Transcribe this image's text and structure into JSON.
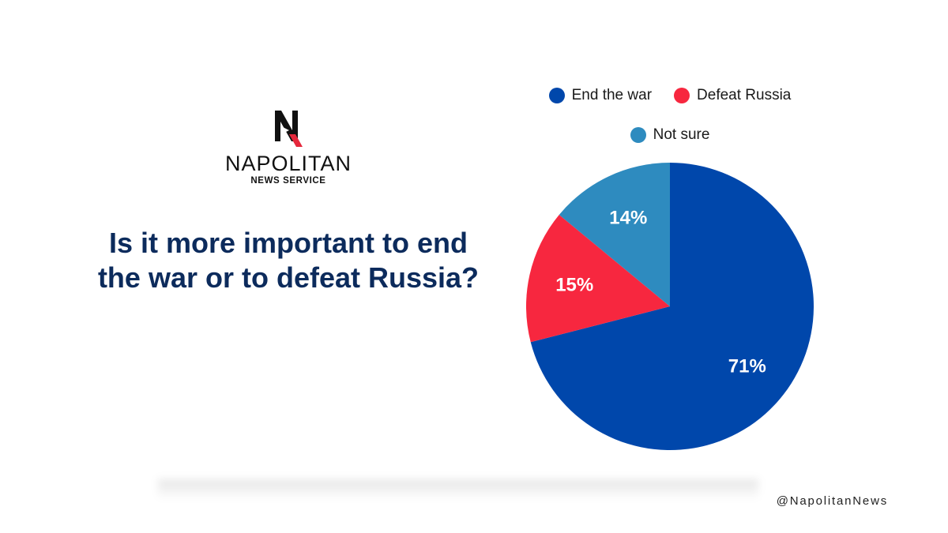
{
  "logo": {
    "name": "NAPOLITAN",
    "subtitle": "NEWS SERVICE"
  },
  "question": "Is it more important to end the war or to defeat Russia?",
  "legend_rows": [
    [
      0,
      1
    ],
    [
      2
    ]
  ],
  "chart_data": {
    "type": "pie",
    "categories": [
      "End the war",
      "Defeat Russia",
      "Not sure"
    ],
    "values": [
      71,
      15,
      14
    ],
    "labels": [
      "71%",
      "15%",
      "14%"
    ],
    "colors": [
      "#0047ab",
      "#f7273f",
      "#2e8bbf"
    ],
    "start": "12 o'clock",
    "direction": "clockwise",
    "legend_placement": "top"
  },
  "footer": {
    "handle": "@NapolitanNews"
  }
}
